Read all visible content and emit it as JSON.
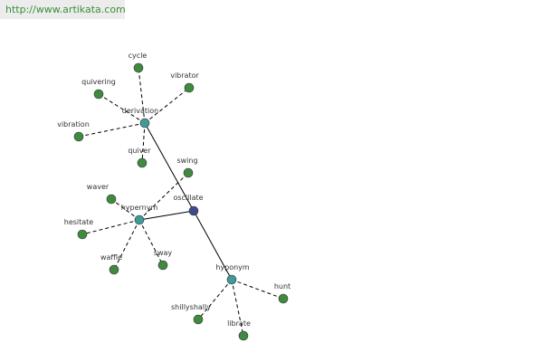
{
  "url": "http://www.artikata.com",
  "nodes": [
    {
      "label": "oscillate"
    },
    {
      "label": "derivation"
    },
    {
      "label": "hypernym"
    },
    {
      "label": "hyponym"
    },
    {
      "label": "cycle"
    },
    {
      "label": "vibrator"
    },
    {
      "label": "quivering"
    },
    {
      "label": "vibration"
    },
    {
      "label": "quiver"
    },
    {
      "label": "swing"
    },
    {
      "label": "waver"
    },
    {
      "label": "hesitate"
    },
    {
      "label": "waffle"
    },
    {
      "label": "sway"
    },
    {
      "label": "hunt"
    },
    {
      "label": "shillyshally"
    },
    {
      "label": "librate"
    }
  ]
}
